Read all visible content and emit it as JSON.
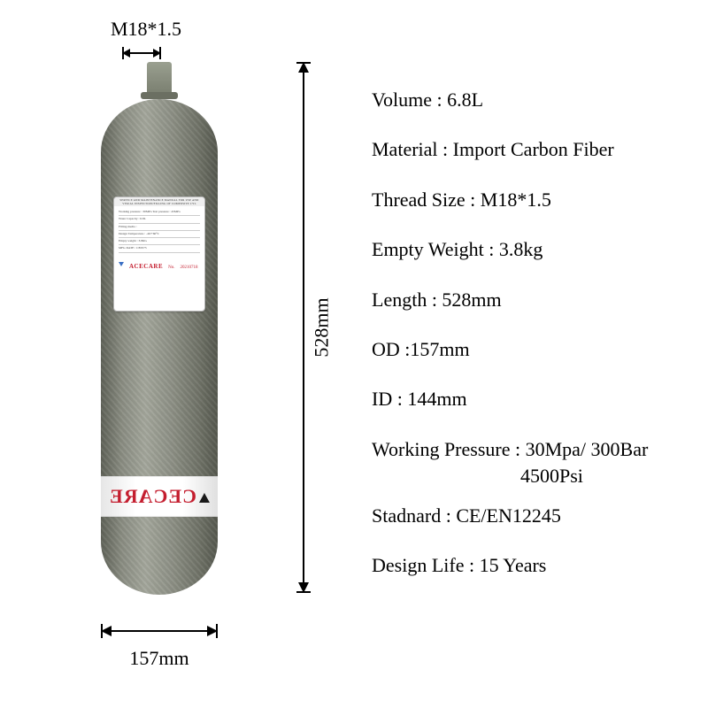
{
  "dimensions": {
    "thread_label": "M18*1.5",
    "height_label": "528mm",
    "width_label": "157mm"
  },
  "cylinder": {
    "body_color_gradient": [
      "#5f6258",
      "#8a8d82",
      "#a4a79c",
      "#8e9186",
      "#6e7166",
      "#55584e"
    ],
    "neck_color": "#8a8f80",
    "brand_text": "CECARE",
    "brand_color": "#c41e2f",
    "label": {
      "header": "SERVICE AND MAINTENANCE MANUAL FOR USE AND VISUAL INSPECTION/FILLING OF COMPOSITE CYL",
      "brand": "ACECARE",
      "no_prefix": "No.",
      "no_value": "20210718",
      "rows": [
        "Working pressure : 30MPa  Test pressure : 45MPa",
        "Water Capacity : 6.8L",
        "Filling media :",
        "Design Temperature : -40/+60°C",
        "Empty weight : 3.8KG",
        "MFG DATE :   CE0575"
      ]
    }
  },
  "specs": [
    {
      "label": "Volume",
      "value": "6.8L"
    },
    {
      "label": "Material",
      "value": "Import Carbon Fiber"
    },
    {
      "label": "Thread Size",
      "value": "M18*1.5"
    },
    {
      "label": "Empty Weight",
      "value": "3.8kg"
    },
    {
      "label": "Length",
      "value": "528mm"
    },
    {
      "label": "OD",
      "value": "157mm"
    },
    {
      "label": "ID",
      "value": "144mm"
    },
    {
      "label": "Working Pressure",
      "value": "30Mpa/ 300Bar",
      "sub": "4500Psi"
    },
    {
      "label": "Stadnard",
      "value": "CE/EN12245"
    },
    {
      "label": "Design Life",
      "value": "15 Years"
    }
  ],
  "styling": {
    "background_color": "#ffffff",
    "text_color": "#000000",
    "dimension_line_color": "#000000",
    "font_family": "Times New Roman",
    "spec_fontsize_pt": 16,
    "dimension_fontsize_pt": 16
  }
}
